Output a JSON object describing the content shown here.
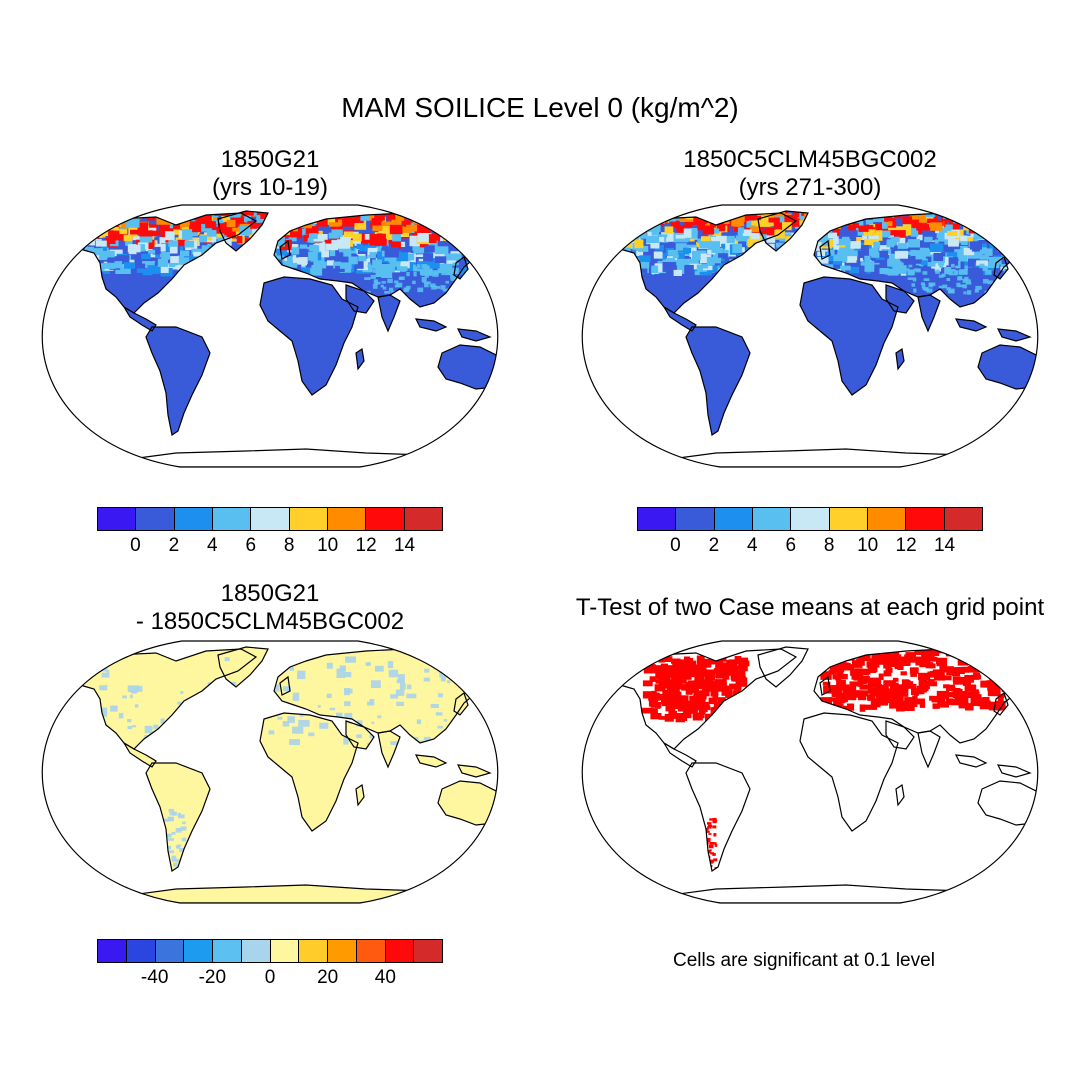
{
  "figure": {
    "title": "MAM SOILICE Level 0 (kg/m^2)",
    "footnote": "Cells are significant at 0.1 level"
  },
  "panels": [
    {
      "id": "case1",
      "title_line1": "1850G21",
      "title_line2": "(yrs 10-19)"
    },
    {
      "id": "case2",
      "title_line1": "1850C5CLM45BGC002",
      "title_line2": "(yrs 271-300)"
    },
    {
      "id": "diff",
      "title_line1": "1850G21",
      "title_line2": "- 1850C5CLM45BGC002"
    },
    {
      "id": "ttest",
      "title_line1": "T-Test of two Case means at each grid point",
      "title_line2": ""
    }
  ],
  "colorbar_abs": {
    "colors": [
      "#3a18f2",
      "#3a5bd9",
      "#1c8fef",
      "#58bff0",
      "#c8e8f6",
      "#ffd02a",
      "#ff8c00",
      "#ff0a0a",
      "#d42a2a"
    ],
    "labels": [
      "0",
      "2",
      "4",
      "6",
      "8",
      "10",
      "12",
      "14"
    ]
  },
  "colorbar_diff": {
    "colors": [
      "#3a18f2",
      "#2a45e0",
      "#3a74dc",
      "#1c9bef",
      "#5cc0f0",
      "#a8d4ec",
      "#fff6a0",
      "#ffcc2a",
      "#ff9a00",
      "#ff5a10",
      "#ff0a0a",
      "#d42a2a"
    ],
    "labels": [
      "-40",
      "-20",
      "0",
      "20",
      "40"
    ]
  },
  "colors": {
    "land_abs": "#3a5bd9",
    "land_diff": "#fff6a0",
    "significant": "#ff0000",
    "coast": "#000000"
  }
}
